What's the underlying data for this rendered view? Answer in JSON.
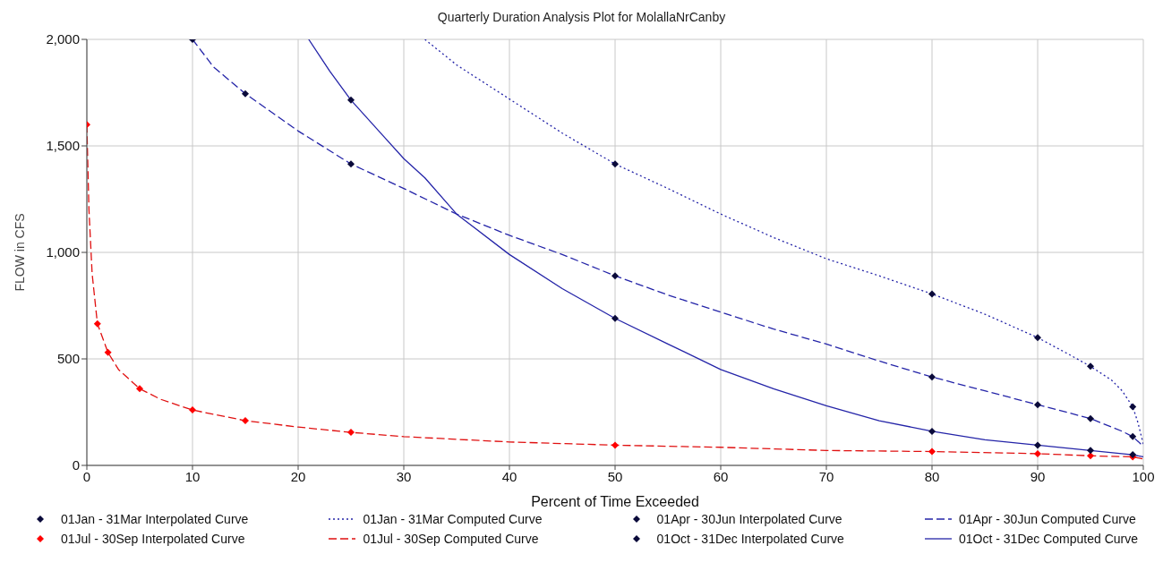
{
  "chart_data": {
    "type": "line",
    "title": "Quarterly Duration Analysis Plot for MolallaNrCanby",
    "xlabel": "Percent of Time Exceeded",
    "ylabel": "FLOW in CFS",
    "xlim": [
      0,
      100
    ],
    "xticks": [
      0,
      10,
      20,
      30,
      40,
      50,
      60,
      70,
      80,
      90,
      100
    ],
    "ylim": [
      0,
      2000
    ],
    "yticks": [
      0,
      500,
      {
        "value": 1000,
        "label": "1,000"
      },
      {
        "value": 1500,
        "label": "1,500"
      },
      {
        "value": 2000,
        "label": "2,000"
      }
    ],
    "grid": true,
    "legend": "bottom",
    "series": [
      {
        "name": "01Jan - 31Mar Interpolated Curve",
        "type": "scatter",
        "marker": "diamond",
        "color": "#0a0a3a",
        "x": [
          50,
          80,
          90,
          95,
          99
        ],
        "values": [
          1415,
          805,
          600,
          465,
          275
        ]
      },
      {
        "name": "01Jan - 31Mar Computed Curve",
        "line_style": "dotted",
        "color": "#2424a8",
        "x": [
          32,
          35,
          40,
          45,
          50,
          55,
          60,
          65,
          70,
          75,
          80,
          85,
          90,
          93,
          95,
          97,
          98,
          99,
          99.5,
          100
        ],
        "values": [
          2000,
          1880,
          1720,
          1560,
          1415,
          1300,
          1180,
          1070,
          970,
          890,
          805,
          710,
          600,
          520,
          465,
          400,
          350,
          275,
          200,
          100
        ]
      },
      {
        "name": "01Apr - 30Jun Interpolated Curve",
        "type": "scatter",
        "marker": "diamond",
        "color": "#0a0a3a",
        "x": [
          10,
          15,
          25,
          50,
          80,
          90,
          95,
          99
        ],
        "values": [
          2000,
          1745,
          1415,
          890,
          415,
          285,
          220,
          135
        ]
      },
      {
        "name": "01Apr - 30Jun Computed Curve",
        "line_style": "dashed",
        "color": "#2424a8",
        "x": [
          10,
          12,
          15,
          20,
          25,
          30,
          35,
          40,
          45,
          50,
          55,
          60,
          65,
          70,
          75,
          80,
          85,
          90,
          95,
          98,
          99,
          100
        ],
        "values": [
          2000,
          1870,
          1745,
          1570,
          1415,
          1300,
          1180,
          1080,
          990,
          890,
          800,
          720,
          640,
          570,
          490,
          415,
          350,
          285,
          220,
          160,
          135,
          90
        ]
      },
      {
        "name": "01Jul - 30Sep Interpolated Curve",
        "type": "scatter",
        "marker": "diamond",
        "color": "#ff0000",
        "x": [
          0,
          1,
          2,
          5,
          10,
          15,
          25,
          50,
          80,
          90,
          95,
          99
        ],
        "values": [
          1600,
          665,
          530,
          360,
          260,
          210,
          155,
          95,
          65,
          55,
          45,
          40
        ]
      },
      {
        "name": "01Jul - 30Sep Computed Curve",
        "line_style": "dashed",
        "color": "#e01010",
        "x": [
          0,
          0.2,
          0.5,
          1,
          2,
          3,
          5,
          7,
          10,
          15,
          20,
          25,
          30,
          40,
          50,
          60,
          70,
          80,
          90,
          95,
          99,
          100
        ],
        "values": [
          1600,
          1200,
          900,
          665,
          530,
          450,
          360,
          310,
          260,
          210,
          180,
          155,
          135,
          110,
          95,
          85,
          70,
          65,
          55,
          45,
          40,
          30
        ]
      },
      {
        "name": "01Oct - 31Dec Interpolated Curve",
        "type": "scatter",
        "marker": "diamond",
        "color": "#0a0a3a",
        "x": [
          25,
          50,
          80,
          90,
          95,
          99
        ],
        "values": [
          1715,
          690,
          160,
          95,
          70,
          50
        ]
      },
      {
        "name": "01Oct - 31Dec Computed Curve",
        "line_style": "solid",
        "color": "#2424a8",
        "x": [
          21,
          23,
          25,
          28,
          30,
          32,
          35,
          40,
          45,
          50,
          55,
          60,
          65,
          70,
          75,
          80,
          85,
          90,
          95,
          99,
          100
        ],
        "values": [
          2000,
          1850,
          1715,
          1550,
          1440,
          1350,
          1180,
          990,
          830,
          690,
          570,
          450,
          360,
          280,
          210,
          160,
          120,
          95,
          70,
          50,
          40
        ]
      }
    ]
  }
}
